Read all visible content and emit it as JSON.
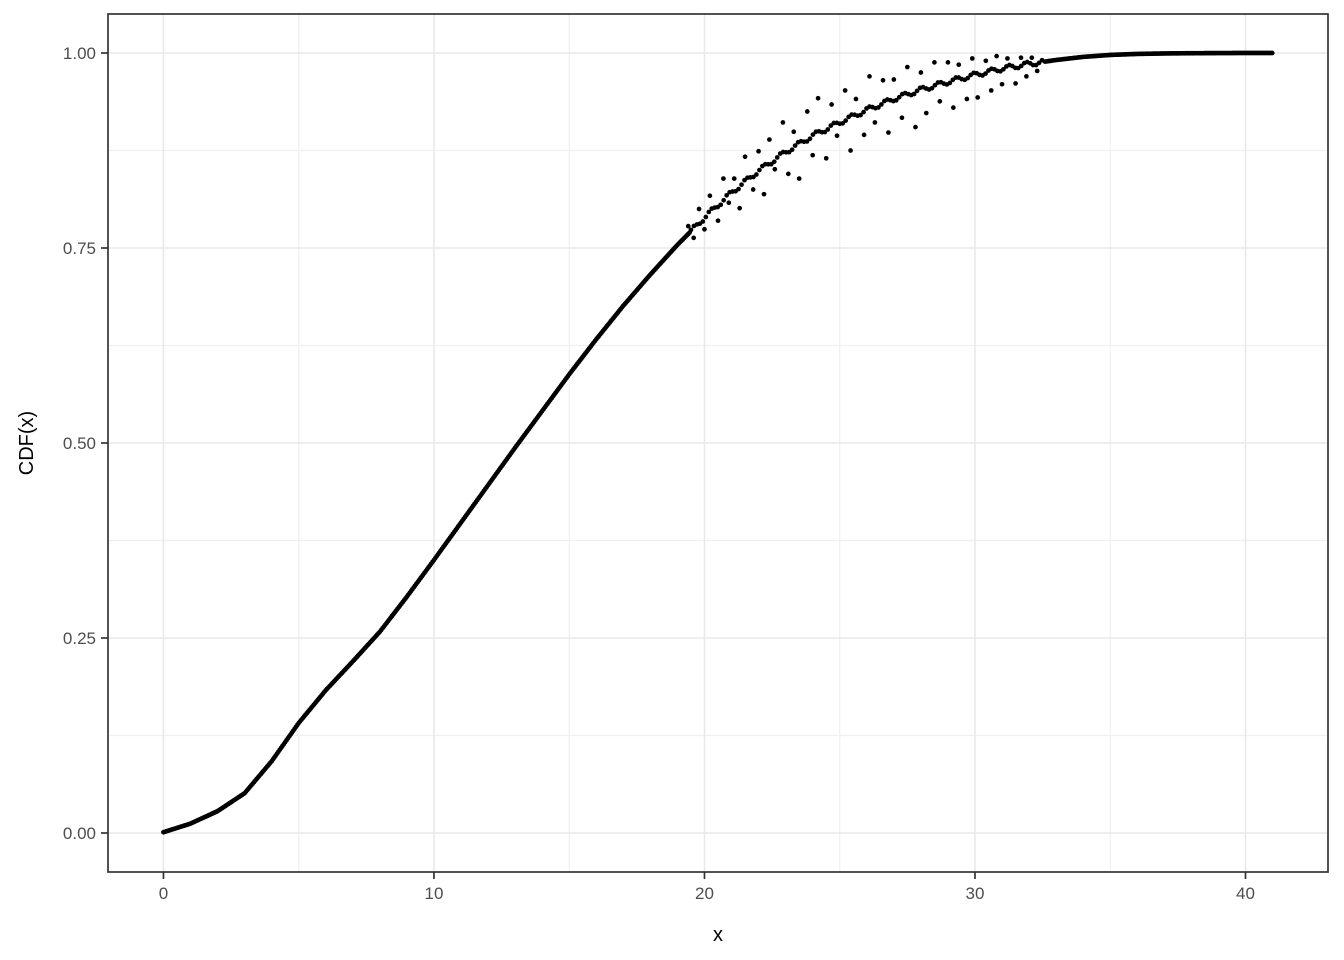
{
  "figure": {
    "background_color": "#ffffff",
    "panel_background_color": "#ffffff",
    "panel_border_color": "#343434",
    "grid_major_color": "#e8e8e8",
    "grid_minor_color": "#f0f0f0",
    "tick_mark_color": "#343434",
    "tick_label_color": "#4d4d4d",
    "point_color": "#000000"
  },
  "axes": {
    "x": {
      "title": "x",
      "ticks": [
        0,
        10,
        20,
        30,
        40
      ],
      "tick_labels": [
        "0",
        "10",
        "20",
        "30",
        "40"
      ],
      "minor_ticks": [
        5,
        15,
        25,
        35
      ],
      "range": [
        -2.05,
        43.05
      ]
    },
    "y": {
      "title": "CDF(x)",
      "ticks": [
        0,
        0.25,
        0.5,
        0.75,
        1.0
      ],
      "tick_labels": [
        "0.00",
        "0.25",
        "0.50",
        "0.75",
        "1.00"
      ],
      "minor_ticks": [
        0.125,
        0.375,
        0.625,
        0.875
      ],
      "range": [
        -0.05,
        1.05
      ]
    }
  },
  "chart_data": {
    "type": "scatter",
    "title": "",
    "xlabel": "x",
    "ylabel": "CDF(x)",
    "xlim": [
      0,
      41
    ],
    "ylim": [
      0,
      1
    ],
    "grid": true,
    "legend": false,
    "curve": {
      "comment_visible_content": "dense chain of black points forming a smooth CDF curve from (0,0) to (41,1)",
      "x": [
        0,
        1,
        2,
        3,
        4,
        5,
        6,
        7,
        8,
        9,
        10,
        11,
        12,
        13,
        14,
        15,
        16,
        17,
        18,
        19,
        20,
        21,
        22,
        23,
        24,
        25,
        26,
        27,
        28,
        29,
        30,
        31,
        32,
        33,
        34,
        35,
        36,
        37,
        38,
        39,
        40,
        41
      ],
      "y": [
        0.001,
        0.012,
        0.028,
        0.051,
        0.092,
        0.141,
        0.183,
        0.22,
        0.258,
        0.303,
        0.35,
        0.398,
        0.446,
        0.494,
        0.541,
        0.588,
        0.633,
        0.676,
        0.716,
        0.754,
        0.789,
        0.821,
        0.849,
        0.873,
        0.894,
        0.911,
        0.927,
        0.941,
        0.953,
        0.963,
        0.972,
        0.98,
        0.986,
        0.991,
        0.995,
        0.9975,
        0.9988,
        0.9994,
        0.9997,
        0.9999,
        1.0,
        1.0
      ]
    },
    "scatter_points": [
      [
        19.4,
        0.778
      ],
      [
        19.6,
        0.763
      ],
      [
        19.8,
        0.8
      ],
      [
        20.0,
        0.774
      ],
      [
        20.2,
        0.817
      ],
      [
        20.5,
        0.785
      ],
      [
        20.7,
        0.839
      ],
      [
        20.9,
        0.808
      ],
      [
        21.1,
        0.839
      ],
      [
        21.3,
        0.801
      ],
      [
        21.5,
        0.867
      ],
      [
        21.8,
        0.825
      ],
      [
        22.0,
        0.874
      ],
      [
        22.2,
        0.819
      ],
      [
        22.4,
        0.889
      ],
      [
        22.6,
        0.851
      ],
      [
        22.9,
        0.911
      ],
      [
        23.1,
        0.845
      ],
      [
        23.3,
        0.899
      ],
      [
        23.5,
        0.839
      ],
      [
        23.8,
        0.925
      ],
      [
        24.0,
        0.869
      ],
      [
        24.2,
        0.942
      ],
      [
        24.5,
        0.865
      ],
      [
        24.7,
        0.934
      ],
      [
        24.9,
        0.894
      ],
      [
        25.2,
        0.952
      ],
      [
        25.4,
        0.875
      ],
      [
        25.6,
        0.941
      ],
      [
        25.9,
        0.895
      ],
      [
        26.1,
        0.97
      ],
      [
        26.3,
        0.911
      ],
      [
        26.6,
        0.965
      ],
      [
        26.8,
        0.898
      ],
      [
        27.0,
        0.966
      ],
      [
        27.3,
        0.917
      ],
      [
        27.5,
        0.982
      ],
      [
        27.8,
        0.905
      ],
      [
        28.0,
        0.975
      ],
      [
        28.2,
        0.923
      ],
      [
        28.5,
        0.988
      ],
      [
        28.7,
        0.938
      ],
      [
        29.0,
        0.988
      ],
      [
        29.2,
        0.93
      ],
      [
        29.4,
        0.985
      ],
      [
        29.7,
        0.941
      ],
      [
        29.9,
        0.993
      ],
      [
        30.1,
        0.943
      ],
      [
        30.4,
        0.99
      ],
      [
        30.6,
        0.952
      ],
      [
        30.8,
        0.996
      ],
      [
        31.0,
        0.96
      ],
      [
        31.2,
        0.993
      ],
      [
        31.5,
        0.961
      ],
      [
        31.7,
        0.994
      ],
      [
        31.9,
        0.97
      ],
      [
        32.1,
        0.994
      ],
      [
        32.3,
        0.977
      ]
    ],
    "style": {
      "point_radius": 2.35,
      "fine_step": 0.05,
      "coarse_step": 0.11,
      "coarse_from_x": 19.5,
      "coarse_to_x": 32.5,
      "line_jitter_amplitude": 0.003
    }
  }
}
